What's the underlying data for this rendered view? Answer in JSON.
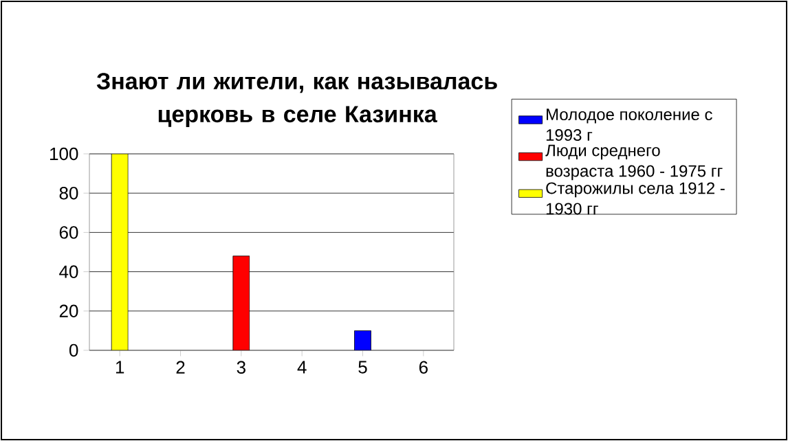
{
  "chart_data": {
    "type": "bar",
    "title": "Знают ли жители, как называлась церковь в селе Казинка",
    "categories": [
      "1",
      "2",
      "3",
      "4",
      "5",
      "6"
    ],
    "series": [
      {
        "name": "Молодое поколение с 1993 г",
        "color": "#0000ff",
        "values": [
          null,
          null,
          null,
          null,
          10,
          null
        ]
      },
      {
        "name": "Люди среднего возраста 1960 - 1975 гг",
        "color": "#ff0000",
        "values": [
          null,
          null,
          48,
          null,
          null,
          null
        ]
      },
      {
        "name": "Старожилы села 1912 - 1930 гг",
        "color": "#ffff00",
        "values": [
          100,
          null,
          null,
          null,
          null,
          null
        ]
      }
    ],
    "ylim": [
      0,
      100
    ],
    "yticks": [
      0,
      20,
      40,
      60,
      80,
      100
    ],
    "grid": "y",
    "legend": "right"
  }
}
